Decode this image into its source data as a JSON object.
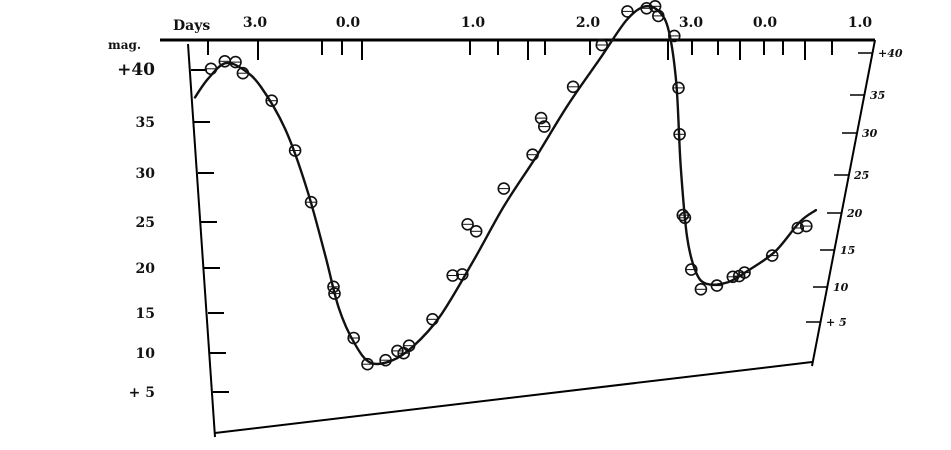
{
  "chart_data": {
    "type": "scatter",
    "title": "",
    "xlabel": "Days",
    "ylabel": "mag.",
    "x_tick_labels": [
      "3.0",
      "0.0",
      "1.0",
      "2.0",
      "3.0",
      "0.0",
      "1.0"
    ],
    "y_tick_labels_left": [
      "+40",
      "35",
      "30",
      "25",
      "20",
      "15",
      "10",
      "+ 5"
    ],
    "y_tick_labels_right": [
      "+40",
      "35",
      "30",
      "25",
      "20",
      "15",
      "10",
      "+ 5"
    ],
    "ylim": [
      5,
      40
    ],
    "grid": false,
    "legend": "none",
    "series": [
      {
        "type": "scatter",
        "points": [
          [
            0.15,
            38.2
          ],
          [
            0.28,
            38.8
          ],
          [
            0.38,
            38.6
          ],
          [
            0.45,
            37.4
          ],
          [
            0.72,
            34.3
          ],
          [
            0.94,
            29.0
          ],
          [
            1.09,
            23.6
          ],
          [
            1.3,
            14.8
          ],
          [
            1.31,
            14.1
          ],
          [
            1.49,
            9.4
          ],
          [
            1.62,
            6.6
          ],
          [
            1.79,
            6.8
          ],
          [
            1.9,
            7.6
          ],
          [
            1.96,
            7.3
          ],
          [
            2.01,
            8.0
          ],
          [
            2.23,
            10.4
          ],
          [
            2.42,
            14.6
          ],
          [
            2.51,
            14.6
          ],
          [
            2.56,
            19.6
          ],
          [
            2.64,
            18.8
          ],
          [
            2.9,
            22.8
          ],
          [
            3.17,
            25.9
          ],
          [
            3.25,
            29.5
          ],
          [
            3.28,
            28.6
          ],
          [
            3.55,
            32.3
          ],
          [
            3.82,
            36.2
          ],
          [
            4.06,
            39.3
          ],
          [
            4.24,
            39.4
          ],
          [
            4.32,
            39.5
          ],
          [
            4.35,
            38.5
          ],
          [
            4.5,
            36.3
          ],
          [
            4.54,
            31.0
          ],
          [
            4.55,
            26.3
          ],
          [
            4.58,
            18.1
          ],
          [
            4.6,
            17.8
          ],
          [
            4.66,
            12.5
          ],
          [
            4.75,
            10.4
          ],
          [
            4.9,
            10.6
          ],
          [
            5.05,
            11.3
          ],
          [
            5.11,
            11.3
          ],
          [
            5.16,
            11.6
          ],
          [
            5.42,
            13.0
          ],
          [
            5.66,
            15.5
          ],
          [
            5.74,
            15.6
          ]
        ]
      },
      {
        "type": "line",
        "points": [
          [
            0.0,
            35.5
          ],
          [
            0.12,
            37.2
          ],
          [
            0.28,
            38.6
          ],
          [
            0.45,
            37.8
          ],
          [
            0.62,
            35.8
          ],
          [
            0.85,
            31.2
          ],
          [
            1.05,
            25.0
          ],
          [
            1.22,
            18.2
          ],
          [
            1.35,
            12.6
          ],
          [
            1.5,
            8.8
          ],
          [
            1.65,
            6.7
          ],
          [
            1.85,
            6.7
          ],
          [
            2.05,
            7.9
          ],
          [
            2.3,
            10.6
          ],
          [
            2.6,
            15.6
          ],
          [
            2.9,
            21.0
          ],
          [
            3.2,
            25.6
          ],
          [
            3.5,
            30.5
          ],
          [
            3.8,
            34.8
          ],
          [
            4.05,
            38.4
          ],
          [
            4.22,
            39.6
          ],
          [
            4.36,
            38.9
          ],
          [
            4.45,
            36.8
          ],
          [
            4.52,
            31.4
          ],
          [
            4.56,
            23.2
          ],
          [
            4.62,
            15.9
          ],
          [
            4.7,
            12.3
          ],
          [
            4.8,
            10.9
          ],
          [
            5.0,
            10.8
          ],
          [
            5.2,
            11.8
          ],
          [
            5.45,
            13.4
          ],
          [
            5.68,
            16.1
          ],
          [
            5.83,
            17.1
          ]
        ]
      }
    ]
  }
}
